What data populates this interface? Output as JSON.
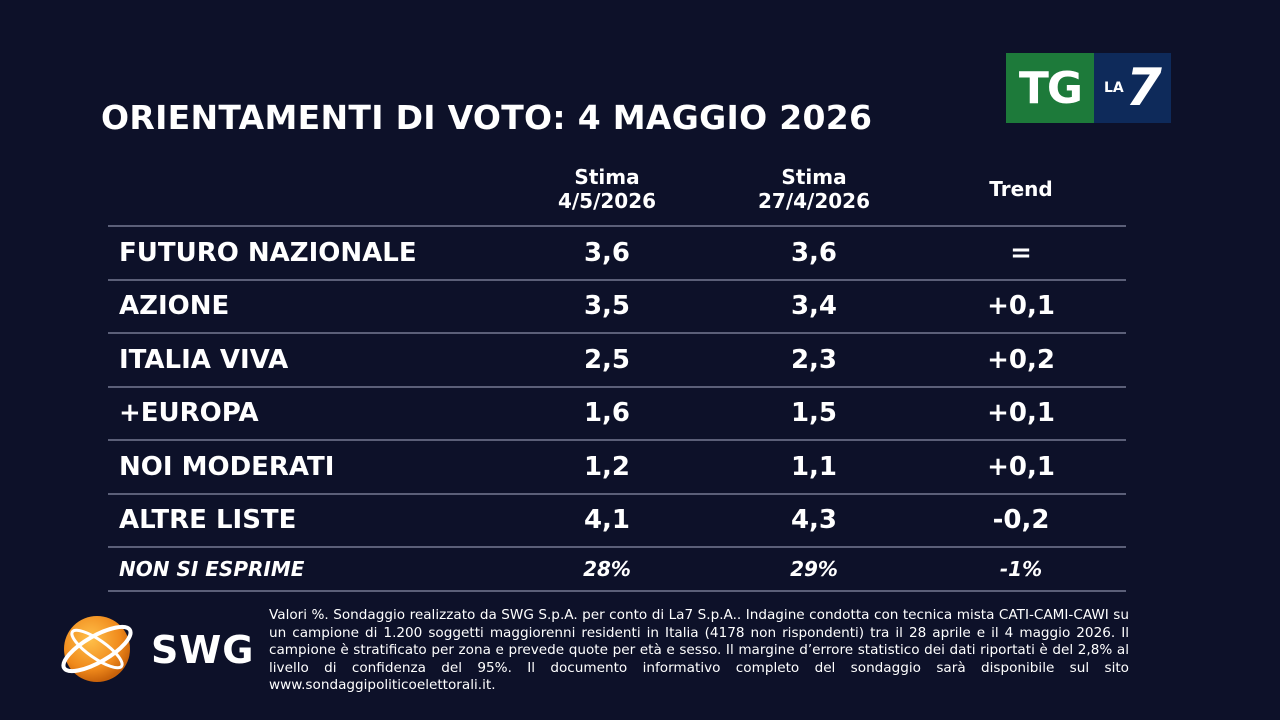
{
  "header": {
    "title": "ORIENTAMENTI DI VOTO: 4 MAGGIO 2026",
    "logo": {
      "tg": "TG",
      "la": "LA",
      "seven": "7"
    }
  },
  "chart_data": {
    "type": "table",
    "title": "ORIENTAMENTI DI VOTO: 4 MAGGIO 2026",
    "columns": [
      {
        "line1": "Stima",
        "line2": "4/5/2026"
      },
      {
        "line1": "Stima",
        "line2": "27/4/2026"
      },
      {
        "line1": "Trend",
        "line2": ""
      }
    ],
    "rows": [
      {
        "label": "FUTURO NAZIONALE",
        "current": "3,6",
        "previous": "3,6",
        "trend": "="
      },
      {
        "label": "AZIONE",
        "current": "3,5",
        "previous": "3,4",
        "trend": "+0,1"
      },
      {
        "label": "ITALIA VIVA",
        "current": "2,5",
        "previous": "2,3",
        "trend": "+0,2"
      },
      {
        "label": "+EUROPA",
        "current": "1,6",
        "previous": "1,5",
        "trend": "+0,1"
      },
      {
        "label": "NOI MODERATI",
        "current": "1,2",
        "previous": "1,1",
        "trend": "+0,1"
      },
      {
        "label": "ALTRE LISTE",
        "current": "4,1",
        "previous": "4,3",
        "trend": "-0,2"
      }
    ],
    "footer_row": {
      "label": "NON SI ESPRIME",
      "current": "28%",
      "previous": "29%",
      "trend": "-1%"
    }
  },
  "footer": {
    "brand": "SWG",
    "note": "Valori %. Sondaggio realizzato da SWG S.p.A. per conto di La7 S.p.A.. Indagine condotta con tecnica mista CATI-CAMI-CAWI su un campione di 1.200 soggetti maggiorenni residenti in Italia (4178 non rispondenti) tra il 28 aprile e il 4 maggio 2026. Il campione è stratificato per zona e prevede quote per età e sesso. Il margine d’errore statistico dei dati riportati è del 2,8% al livello di confidenza del 95%. Il documento informativo completo del sondaggio sarà disponibile sul sito www.sondaggipoliticoelettorali.it."
  },
  "colors": {
    "background": "#0d1129",
    "divider": "#5b5f78",
    "tg_green": "#1d7a3a",
    "la7_blue": "#0e2a5a",
    "swg_orange": "#f08a1c"
  }
}
